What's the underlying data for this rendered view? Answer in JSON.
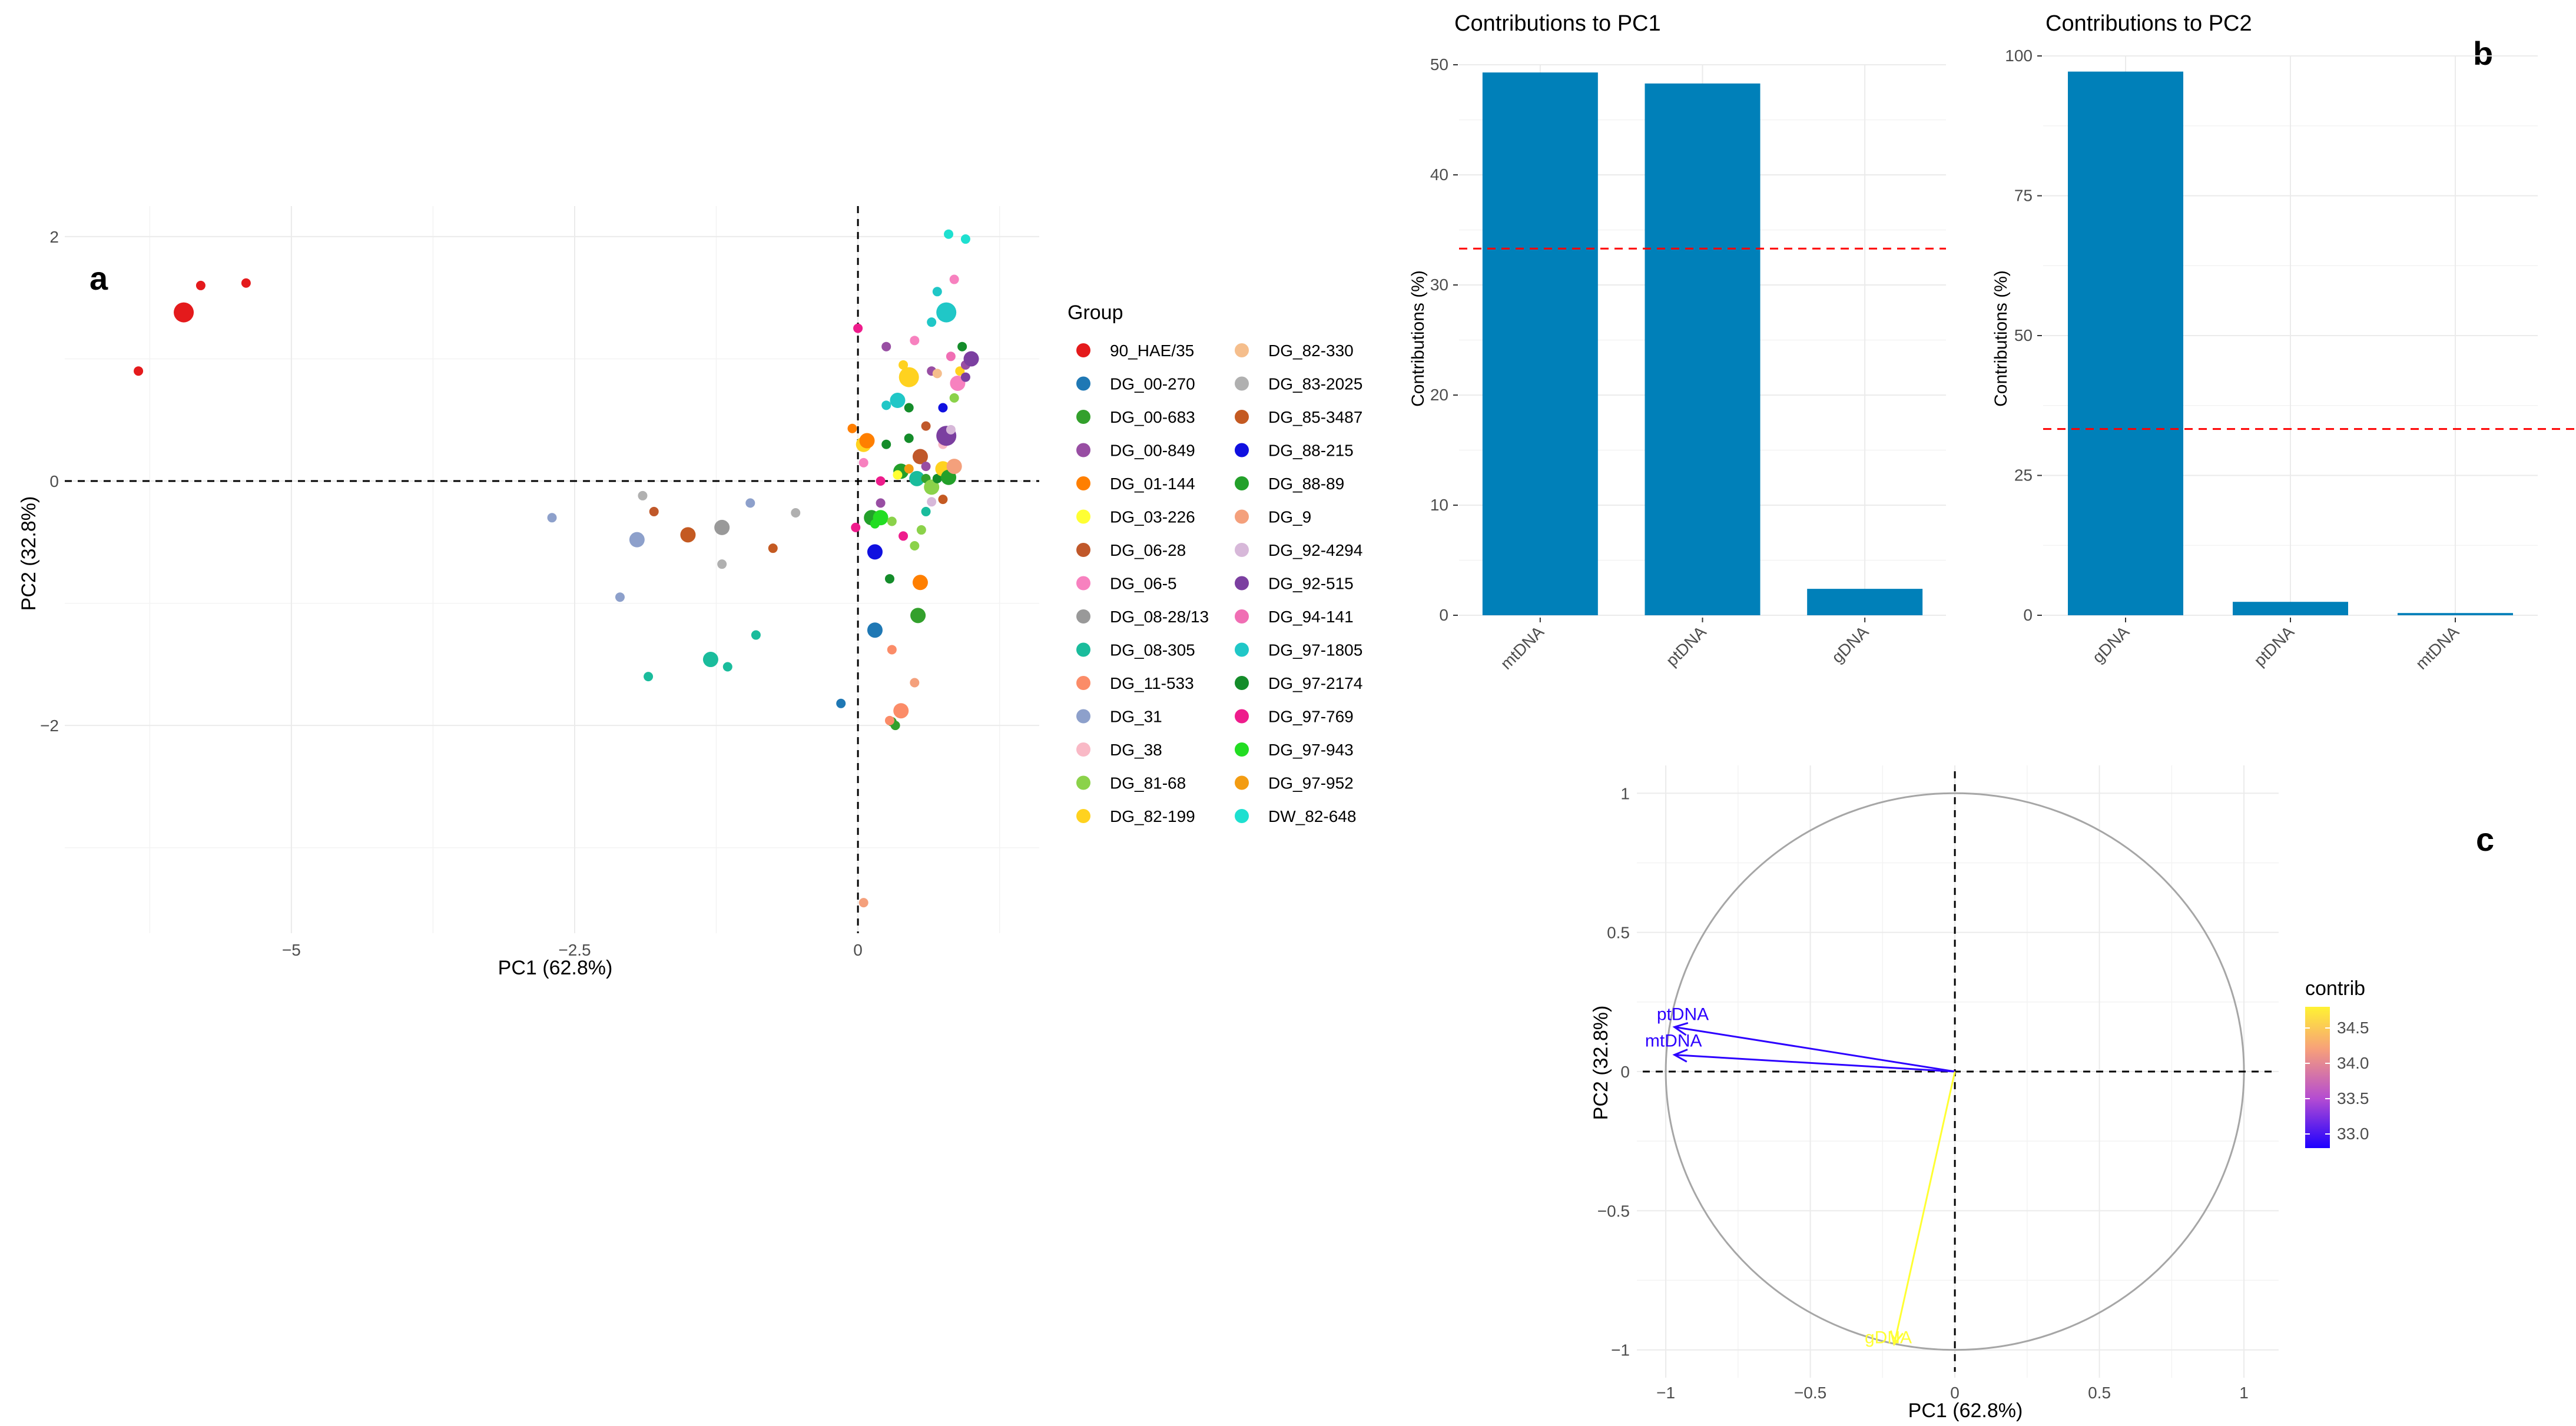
{
  "figure_labels": {
    "a": "a",
    "b": "b",
    "c": "c"
  },
  "colors": {
    "bar": "#0080B9",
    "threshold": "#FF0000",
    "grid": "#EBEBEB",
    "circle": "#A6A6A6"
  },
  "chart_data": [
    {
      "id": "a",
      "type": "scatter",
      "title": "",
      "xlabel": "PC1 (62.8%)",
      "ylabel": "PC2 (32.8%)",
      "xlim": [
        -7.0,
        1.6
      ],
      "ylim": [
        -3.7,
        2.25
      ],
      "xticks": [
        -5,
        -2.5,
        0
      ],
      "xtick_labels": [
        "−5",
        "−2.5",
        "0"
      ],
      "yticks": [
        -2,
        0,
        2
      ],
      "ytick_labels": [
        "−2",
        "0",
        "2"
      ],
      "legend_title": "Group",
      "groups": [
        {
          "name": "90_HAE/35",
          "color": "#E41A1C"
        },
        {
          "name": "DG_00-270",
          "color": "#1F78B4"
        },
        {
          "name": "DG_00-683",
          "color": "#33A02C"
        },
        {
          "name": "DG_00-849",
          "color": "#984EA3"
        },
        {
          "name": "DG_01-144",
          "color": "#FF7F00"
        },
        {
          "name": "DG_03-226",
          "color": "#FFFF33"
        },
        {
          "name": "DG_06-28",
          "color": "#C0582A"
        },
        {
          "name": "DG_06-5",
          "color": "#F781BF"
        },
        {
          "name": "DG_08-28/13",
          "color": "#999999"
        },
        {
          "name": "DG_08-305",
          "color": "#1ABC9C"
        },
        {
          "name": "DG_11-533",
          "color": "#FB8C68"
        },
        {
          "name": "DG_31",
          "color": "#8DA0CB"
        },
        {
          "name": "DG_38",
          "color": "#F9B9C6"
        },
        {
          "name": "DG_81-68",
          "color": "#8BD24A"
        },
        {
          "name": "DG_82-199",
          "color": "#FFD21F"
        },
        {
          "name": "DG_82-330",
          "color": "#F5BE8C"
        },
        {
          "name": "DG_83-2025",
          "color": "#B0B0B0"
        },
        {
          "name": "DG_85-3487",
          "color": "#C45A22"
        },
        {
          "name": "DG_88-215",
          "color": "#1010E0"
        },
        {
          "name": "DG_88-89",
          "color": "#23A02A"
        },
        {
          "name": "DG_9",
          "color": "#F4A07C"
        },
        {
          "name": "DG_92-4294",
          "color": "#D7B8D9"
        },
        {
          "name": "DG_92-515",
          "color": "#7B3FA0"
        },
        {
          "name": "DG_94-141",
          "color": "#F06EB4"
        },
        {
          "name": "DG_97-1805",
          "color": "#20C7C7"
        },
        {
          "name": "DG_97-2174",
          "color": "#148C2A"
        },
        {
          "name": "DG_97-769",
          "color": "#EE1C8C"
        },
        {
          "name": "DG_97-943",
          "color": "#22DD22"
        },
        {
          "name": "DG_97-952",
          "color": "#F39C12"
        },
        {
          "name": "DW_82-648",
          "color": "#1EE0D0"
        }
      ],
      "points": [
        {
          "x": -6.35,
          "y": 0.9,
          "g": 0,
          "s": 1
        },
        {
          "x": -5.95,
          "y": 1.38,
          "g": 0,
          "s": 3
        },
        {
          "x": -5.8,
          "y": 1.6,
          "g": 0,
          "s": 1
        },
        {
          "x": -5.4,
          "y": 1.62,
          "g": 0,
          "s": 1
        },
        {
          "x": -2.7,
          "y": -0.3,
          "g": 11,
          "s": 1
        },
        {
          "x": -2.1,
          "y": -0.95,
          "g": 11,
          "s": 1
        },
        {
          "x": -1.95,
          "y": -0.48,
          "g": 11,
          "s": 2
        },
        {
          "x": -1.9,
          "y": -0.12,
          "g": 16,
          "s": 1
        },
        {
          "x": -1.85,
          "y": -1.6,
          "g": 9,
          "s": 1
        },
        {
          "x": -1.8,
          "y": -0.25,
          "g": 6,
          "s": 1
        },
        {
          "x": -1.5,
          "y": -0.44,
          "g": 17,
          "s": 2
        },
        {
          "x": -1.3,
          "y": -1.46,
          "g": 9,
          "s": 2
        },
        {
          "x": -1.2,
          "y": -0.38,
          "g": 8,
          "s": 2
        },
        {
          "x": -1.2,
          "y": -0.68,
          "g": 16,
          "s": 1
        },
        {
          "x": -1.15,
          "y": -1.52,
          "g": 9,
          "s": 1
        },
        {
          "x": -0.95,
          "y": -0.18,
          "g": 11,
          "s": 1
        },
        {
          "x": -0.9,
          "y": -1.26,
          "g": 9,
          "s": 1
        },
        {
          "x": -0.75,
          "y": -0.55,
          "g": 17,
          "s": 1
        },
        {
          "x": -0.55,
          "y": -0.26,
          "g": 16,
          "s": 1
        },
        {
          "x": -0.15,
          "y": -1.82,
          "g": 1,
          "s": 1
        },
        {
          "x": 0.05,
          "y": -3.45,
          "g": 20,
          "s": 1
        },
        {
          "x": 0.0,
          "y": 1.25,
          "g": 26,
          "s": 1
        },
        {
          "x": -0.05,
          "y": 0.43,
          "g": 4,
          "s": 1
        },
        {
          "x": -0.02,
          "y": -0.38,
          "g": 26,
          "s": 1
        },
        {
          "x": 0.05,
          "y": 0.3,
          "g": 14,
          "s": 2
        },
        {
          "x": 0.05,
          "y": 0.15,
          "g": 7,
          "s": 1
        },
        {
          "x": 0.08,
          "y": 0.33,
          "g": 4,
          "s": 2
        },
        {
          "x": 0.12,
          "y": -0.3,
          "g": 19,
          "s": 2
        },
        {
          "x": 0.15,
          "y": -0.35,
          "g": 27,
          "s": 1
        },
        {
          "x": 0.15,
          "y": -0.58,
          "g": 18,
          "s": 2
        },
        {
          "x": 0.15,
          "y": -1.22,
          "g": 1,
          "s": 2
        },
        {
          "x": 0.2,
          "y": 0.0,
          "g": 26,
          "s": 1
        },
        {
          "x": 0.2,
          "y": -0.3,
          "g": 27,
          "s": 2
        },
        {
          "x": 0.25,
          "y": 0.62,
          "g": 24,
          "s": 1
        },
        {
          "x": 0.25,
          "y": 1.1,
          "g": 3,
          "s": 1
        },
        {
          "x": 0.3,
          "y": -1.97,
          "g": 2,
          "s": 1
        },
        {
          "x": 0.33,
          "y": -2.0,
          "g": 2,
          "s": 1
        },
        {
          "x": 0.25,
          "y": 0.3,
          "g": 25,
          "s": 1
        },
        {
          "x": 0.3,
          "y": -1.38,
          "g": 10,
          "s": 1
        },
        {
          "x": 0.28,
          "y": -0.8,
          "g": 25,
          "s": 1
        },
        {
          "x": 0.28,
          "y": -1.96,
          "g": 10,
          "s": 1
        },
        {
          "x": 0.3,
          "y": -0.33,
          "g": 13,
          "s": 1
        },
        {
          "x": 0.35,
          "y": 0.66,
          "g": 24,
          "s": 2
        },
        {
          "x": 0.38,
          "y": -1.88,
          "g": 10,
          "s": 2
        },
        {
          "x": 0.38,
          "y": 0.08,
          "g": 19,
          "s": 2
        },
        {
          "x": 0.4,
          "y": 0.95,
          "g": 14,
          "s": 1
        },
        {
          "x": 0.45,
          "y": 0.85,
          "g": 14,
          "s": 3
        },
        {
          "x": 0.45,
          "y": 0.35,
          "g": 25,
          "s": 1
        },
        {
          "x": 0.45,
          "y": 0.6,
          "g": 25,
          "s": 1
        },
        {
          "x": 0.5,
          "y": -1.65,
          "g": 20,
          "s": 1
        },
        {
          "x": 0.5,
          "y": -0.53,
          "g": 13,
          "s": 1
        },
        {
          "x": 0.5,
          "y": 1.15,
          "g": 7,
          "s": 1
        },
        {
          "x": 0.52,
          "y": 0.02,
          "g": 9,
          "s": 2
        },
        {
          "x": 0.53,
          "y": -1.1,
          "g": 2,
          "s": 2
        },
        {
          "x": 0.55,
          "y": -0.83,
          "g": 4,
          "s": 2
        },
        {
          "x": 0.55,
          "y": 0.2,
          "g": 6,
          "s": 2
        },
        {
          "x": 0.56,
          "y": -0.4,
          "g": 13,
          "s": 1
        },
        {
          "x": 0.6,
          "y": 0.45,
          "g": 6,
          "s": 1
        },
        {
          "x": 0.6,
          "y": 0.02,
          "g": 2,
          "s": 1
        },
        {
          "x": 0.6,
          "y": -0.25,
          "g": 9,
          "s": 1
        },
        {
          "x": 0.6,
          "y": 0.12,
          "g": 3,
          "s": 1
        },
        {
          "x": 0.65,
          "y": -0.17,
          "g": 21,
          "s": 1
        },
        {
          "x": 0.65,
          "y": 1.3,
          "g": 24,
          "s": 1
        },
        {
          "x": 0.65,
          "y": -0.05,
          "g": 13,
          "s": 2
        },
        {
          "x": 0.65,
          "y": 0.9,
          "g": 3,
          "s": 1
        },
        {
          "x": 0.7,
          "y": 0.02,
          "g": 25,
          "s": 1
        },
        {
          "x": 0.7,
          "y": 0.88,
          "g": 15,
          "s": 1
        },
        {
          "x": 0.7,
          "y": 1.55,
          "g": 24,
          "s": 1
        },
        {
          "x": 0.75,
          "y": 0.1,
          "g": 14,
          "s": 2
        },
        {
          "x": 0.75,
          "y": 0.3,
          "g": 12,
          "s": 1
        },
        {
          "x": 0.75,
          "y": -0.15,
          "g": 17,
          "s": 1
        },
        {
          "x": 0.75,
          "y": 0.6,
          "g": 18,
          "s": 1
        },
        {
          "x": 0.78,
          "y": 0.37,
          "g": 22,
          "s": 3
        },
        {
          "x": 0.78,
          "y": 1.38,
          "g": 24,
          "s": 3
        },
        {
          "x": 0.8,
          "y": 0.03,
          "g": 19,
          "s": 2
        },
        {
          "x": 0.82,
          "y": 1.02,
          "g": 23,
          "s": 1
        },
        {
          "x": 0.82,
          "y": 0.42,
          "g": 21,
          "s": 1
        },
        {
          "x": 0.85,
          "y": 0.68,
          "g": 13,
          "s": 1
        },
        {
          "x": 0.85,
          "y": 1.65,
          "g": 7,
          "s": 1
        },
        {
          "x": 0.85,
          "y": 0.12,
          "g": 20,
          "s": 2
        },
        {
          "x": 0.88,
          "y": 0.8,
          "g": 7,
          "s": 2
        },
        {
          "x": 0.9,
          "y": 0.9,
          "g": 14,
          "s": 1
        },
        {
          "x": 0.92,
          "y": 1.1,
          "g": 25,
          "s": 1
        },
        {
          "x": 0.95,
          "y": 0.95,
          "g": 3,
          "s": 1
        },
        {
          "x": 0.95,
          "y": 0.85,
          "g": 22,
          "s": 1
        },
        {
          "x": 1.0,
          "y": 1.0,
          "g": 22,
          "s": 2
        },
        {
          "x": 0.8,
          "y": 2.02,
          "g": 29,
          "s": 1
        },
        {
          "x": 0.95,
          "y": 1.98,
          "g": 29,
          "s": 1
        },
        {
          "x": 0.2,
          "y": -0.18,
          "g": 3,
          "s": 1
        },
        {
          "x": 0.4,
          "y": -0.45,
          "g": 26,
          "s": 1
        },
        {
          "x": 0.45,
          "y": 0.1,
          "g": 28,
          "s": 1
        },
        {
          "x": 0.35,
          "y": 0.05,
          "g": 5,
          "s": 1
        }
      ]
    },
    {
      "id": "b1",
      "type": "bar",
      "title": "Contributions to PC1",
      "xlabel": "",
      "ylabel": "Contributions (%)",
      "categories": [
        "mtDNA",
        "ptDNA",
        "gDNA"
      ],
      "values": [
        49.3,
        48.3,
        2.4
      ],
      "ylim": [
        0,
        50
      ],
      "yticks": [
        0,
        10,
        20,
        30,
        40,
        50
      ],
      "threshold": 33.3
    },
    {
      "id": "b2",
      "type": "bar",
      "title": "Contributions to PC2",
      "xlabel": "",
      "ylabel": "Contributions (%)",
      "categories": [
        "gDNA",
        "ptDNA",
        "mtDNA"
      ],
      "values": [
        97.2,
        2.4,
        0.4
      ],
      "ylim": [
        0,
        100
      ],
      "yticks": [
        0,
        25,
        50,
        75,
        100
      ],
      "threshold": 33.3
    },
    {
      "id": "c",
      "type": "scatter",
      "title": "",
      "xlabel": "PC1 (62.8%)",
      "ylabel": "PC2 (32.8%)",
      "xlim": [
        -1.1,
        1.12
      ],
      "ylim": [
        -1.1,
        1.1
      ],
      "xticks": [
        -1,
        -0.5,
        0,
        0.5,
        1
      ],
      "xtick_labels": [
        "−1",
        "−0.5",
        "0",
        "0.5",
        "1"
      ],
      "yticks": [
        -1,
        -0.5,
        0,
        0.5,
        1
      ],
      "ytick_labels": [
        "−1",
        "−0.5",
        "0",
        "0.5",
        "1"
      ],
      "legend_title": "contrib",
      "colorbar_ticks": [
        "33.0",
        "33.5",
        "34.0",
        "34.5"
      ],
      "colorbar_values": [
        33.0,
        33.5,
        34.0,
        34.5
      ],
      "colorbar_range": [
        32.8,
        34.8
      ],
      "vectors": [
        {
          "name": "ptDNA",
          "x": -0.97,
          "y": 0.16,
          "contrib": 32.9,
          "color": "#2C00FF"
        },
        {
          "name": "mtDNA",
          "x": -0.97,
          "y": 0.06,
          "contrib": 32.8,
          "color": "#2C00FF"
        },
        {
          "name": "gDNA",
          "x": -0.21,
          "y": -0.98,
          "contrib": 34.8,
          "color": "#FFFF33"
        }
      ]
    }
  ]
}
